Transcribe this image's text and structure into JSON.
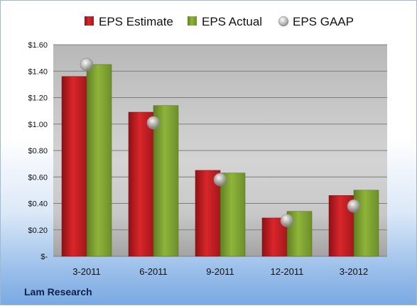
{
  "company": "Lam Research",
  "colors": {
    "estimate": "#d9262a",
    "actual": "#8fb43a",
    "gaap": "#b4b4b4"
  },
  "chart_data": {
    "type": "bar",
    "categories": [
      "3-2011",
      "6-2011",
      "9-2011",
      "12-2011",
      "3-2012"
    ],
    "series": [
      {
        "name": "EPS Estimate",
        "kind": "bar",
        "values": [
          1.36,
          1.09,
          0.65,
          0.29,
          0.46
        ]
      },
      {
        "name": "EPS Actual",
        "kind": "bar",
        "values": [
          1.45,
          1.14,
          0.63,
          0.34,
          0.5
        ]
      },
      {
        "name": "EPS GAAP",
        "kind": "marker",
        "values": [
          1.45,
          1.01,
          0.58,
          0.27,
          0.38
        ]
      }
    ],
    "y_tick_values": [
      0,
      0.2,
      0.4,
      0.6,
      0.8,
      1.0,
      1.2,
      1.4,
      1.6
    ],
    "y_tick_labels": [
      "$-",
      "$0.20",
      "$0.40",
      "$0.60",
      "$0.80",
      "$1.00",
      "$1.20",
      "$1.40",
      "$1.60"
    ],
    "ylim": [
      0,
      1.6
    ],
    "grid": true,
    "legend_position": "top",
    "xlabel": "",
    "ylabel": "",
    "title": ""
  }
}
